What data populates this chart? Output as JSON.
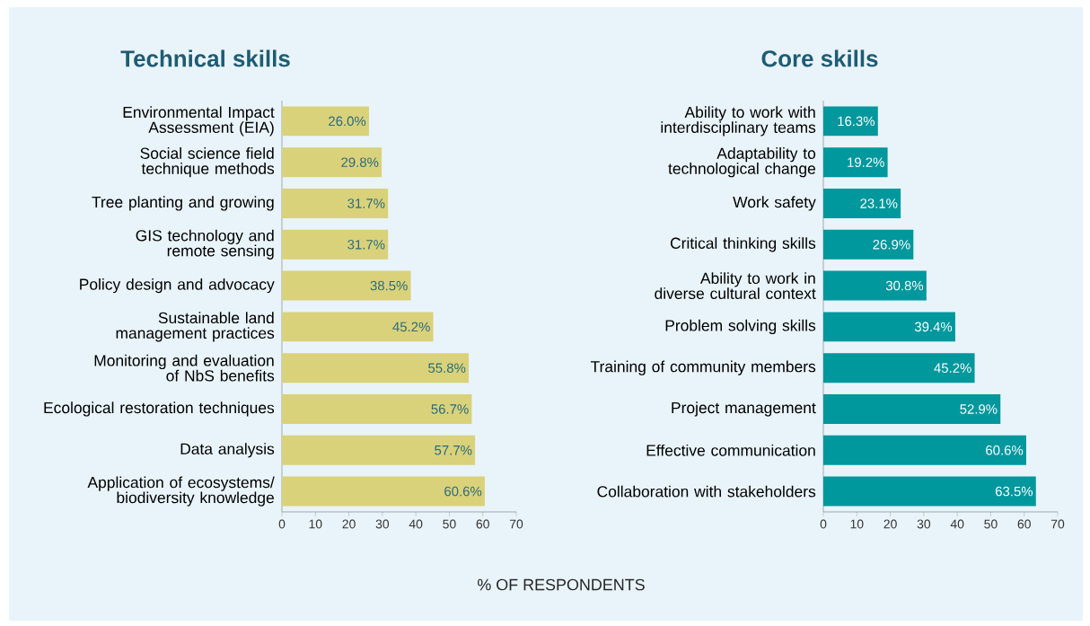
{
  "chart_data": [
    {
      "type": "bar",
      "orientation": "horizontal",
      "title": "Technical skills",
      "xlabel": "% OF RESPONDENTS",
      "categories": [
        "Environmental Impact Assessment (EIA)",
        "Social science field technique methods",
        "Tree planting and growing",
        "GIS technology and remote sensing",
        "Policy design and advocacy",
        "Sustainable land management practices",
        "Monitoring and evaluation of NbS benefits",
        "Ecological restoration techniques",
        "Data analysis",
        "Application of ecosystems/ biodiversity knowledge"
      ],
      "values": [
        26.0,
        29.8,
        31.7,
        31.7,
        38.5,
        45.2,
        55.8,
        56.7,
        57.7,
        60.6
      ],
      "value_labels": [
        "26.0%",
        "29.8%",
        "31.7%",
        "31.7%",
        "38.5%",
        "45.2%",
        "55.8%",
        "56.7%",
        "57.7%",
        "60.6%"
      ],
      "color": "#d9d27a",
      "xlim": [
        0,
        70
      ],
      "xticks": [
        0,
        10,
        20,
        30,
        40,
        50,
        60,
        70
      ]
    },
    {
      "type": "bar",
      "orientation": "horizontal",
      "title": "Core skills",
      "categories": [
        "Ability to work with interdisciplinary teams",
        "Adaptability to technological change",
        "Work safety",
        "Critical thinking skills",
        "Ability to work in diverse cultural context",
        "Problem solving skills",
        "Training of community members",
        "Project management",
        "Effective communication",
        "Collaboration with stakeholders"
      ],
      "values": [
        16.3,
        19.2,
        23.1,
        26.9,
        30.8,
        39.4,
        45.2,
        52.9,
        60.6,
        63.5
      ],
      "value_labels": [
        "16.3%",
        "19.2%",
        "23.1%",
        "26.9%",
        "30.8%",
        "39.4%",
        "45.2%",
        "52.9%",
        "60.6%",
        "63.5%"
      ],
      "color": "#00979d",
      "xlim": [
        0,
        70
      ],
      "xticks": [
        0,
        10,
        20,
        30,
        40,
        50,
        60,
        70
      ]
    }
  ]
}
